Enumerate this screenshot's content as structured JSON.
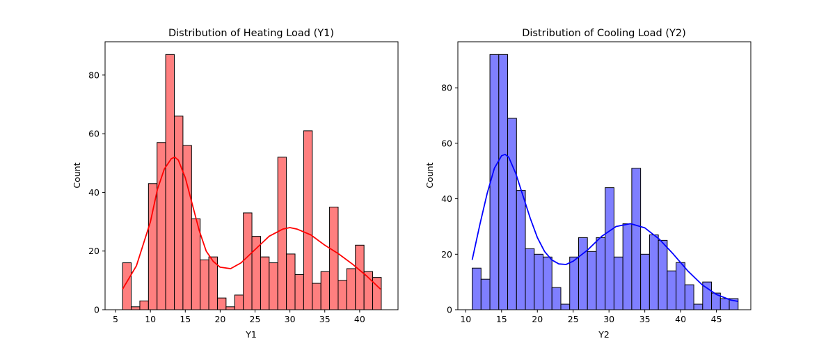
{
  "chart_data": [
    {
      "type": "bar",
      "title": "Distribution of Heating Load (Y1)",
      "xlabel": "Y1",
      "ylabel": "Count",
      "xlim": [
        3.5,
        45.5
      ],
      "ylim": [
        0,
        91.35
      ],
      "xticks": [
        5,
        10,
        15,
        20,
        25,
        30,
        35,
        40
      ],
      "yticks": [
        0,
        20,
        40,
        60,
        80
      ],
      "bar_color": "#ff7f7f",
      "kde_color": "#ff0000",
      "bins": {
        "start": 6.01,
        "end": 43.1,
        "counts": [
          16,
          1,
          3,
          43,
          57,
          87,
          66,
          56,
          31,
          17,
          18,
          4,
          1,
          5,
          33,
          25,
          18,
          16,
          52,
          19,
          12,
          61,
          9,
          13,
          35,
          10,
          14,
          22,
          13,
          11
        ]
      },
      "kde": {
        "x": [
          6,
          8,
          10,
          11,
          12,
          13,
          13.5,
          14,
          15,
          16,
          17,
          18,
          19,
          20,
          21.5,
          23,
          25,
          27,
          29,
          30,
          31,
          33,
          35,
          37,
          39,
          41,
          43
        ],
        "y": [
          7,
          15,
          30,
          41,
          48,
          51.5,
          52,
          51,
          45,
          36,
          27,
          20,
          16.5,
          14.5,
          14,
          16,
          20.5,
          25,
          27.5,
          28,
          27.5,
          25.5,
          22,
          19,
          15.5,
          11.5,
          7
        ]
      }
    },
    {
      "type": "bar",
      "title": "Distribution of Cooling Load (Y2)",
      "xlabel": "Y2",
      "ylabel": "Count",
      "xlim": [
        8.9,
        49.8
      ],
      "ylim": [
        0,
        96.6
      ],
      "xticks": [
        10,
        15,
        20,
        25,
        30,
        35,
        40,
        45
      ],
      "yticks": [
        0,
        20,
        40,
        60,
        80
      ],
      "bar_color": "#7f7fff",
      "kde_color": "#0000ff",
      "bins": {
        "start": 10.9,
        "end": 48.03,
        "counts": [
          15,
          11,
          92,
          92,
          69,
          43,
          22,
          20,
          19,
          8,
          2,
          19,
          26,
          21,
          26,
          44,
          19,
          31,
          51,
          20,
          27,
          25,
          14,
          17,
          9,
          2,
          10,
          6,
          4,
          4
        ]
      },
      "kde": {
        "x": [
          10.9,
          12,
          13,
          14,
          15,
          15.5,
          16,
          17,
          18,
          19,
          20,
          21,
          22,
          23,
          24,
          25,
          27,
          29,
          31,
          33,
          35,
          37,
          39,
          41,
          43,
          45,
          47,
          48
        ],
        "y": [
          18,
          31,
          42,
          51,
          55.5,
          56,
          55,
          49,
          41,
          33,
          26,
          21,
          18,
          16.5,
          16.3,
          17.5,
          21.5,
          26.5,
          30,
          31,
          29.5,
          25.5,
          20,
          14,
          9,
          5.5,
          3.5,
          3
        ]
      }
    }
  ]
}
